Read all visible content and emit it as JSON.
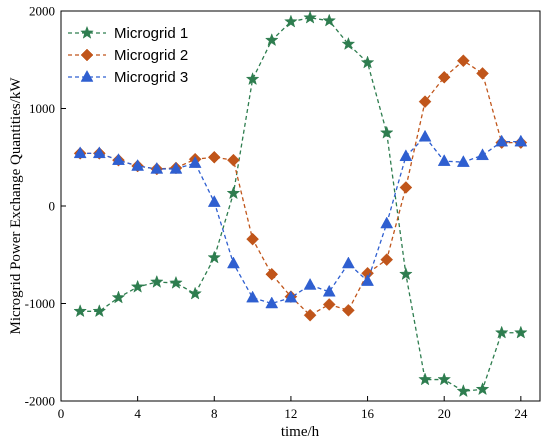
{
  "chart_data": {
    "type": "line",
    "title": "",
    "xlabel": "time/h",
    "ylabel": "Microgrid Power Exchange Quantities/kW",
    "xlim": [
      0,
      25
    ],
    "ylim": [
      -2000,
      2000
    ],
    "x_ticks": [
      0,
      4,
      8,
      12,
      16,
      20,
      24
    ],
    "y_ticks": [
      -2000,
      -1000,
      0,
      1000,
      2000
    ],
    "grid": false,
    "legend_position": "top-left",
    "x": [
      1,
      2,
      3,
      4,
      5,
      6,
      7,
      8,
      9,
      10,
      11,
      12,
      13,
      14,
      15,
      16,
      17,
      18,
      19,
      20,
      21,
      22,
      23,
      24
    ],
    "series": [
      {
        "name": "Microgrid 1",
        "color": "#2e7d4f",
        "marker": "star",
        "line_style": "dashed",
        "values": [
          -1080,
          -1080,
          -940,
          -830,
          -780,
          -790,
          -900,
          -530,
          130,
          1300,
          1700,
          1890,
          1930,
          1900,
          1660,
          1470,
          750,
          -700,
          -1780,
          -1780,
          -1900,
          -1880,
          -1300,
          -1300
        ]
      },
      {
        "name": "Microgrid 2",
        "color": "#c0551a",
        "marker": "diamond",
        "line_style": "dashed",
        "values": [
          540,
          540,
          470,
          410,
          380,
          390,
          480,
          500,
          470,
          -340,
          -700,
          -930,
          -1120,
          -1010,
          -1070,
          -690,
          -550,
          190,
          1070,
          1320,
          1490,
          1360,
          650,
          650
        ]
      },
      {
        "name": "Microgrid 3",
        "color": "#2f5fd0",
        "marker": "triangle",
        "line_style": "dashed",
        "values": [
          540,
          540,
          470,
          410,
          380,
          380,
          440,
          40,
          -590,
          -940,
          -1000,
          -940,
          -810,
          -880,
          -590,
          -770,
          -180,
          510,
          710,
          460,
          450,
          520,
          660,
          660
        ]
      }
    ]
  }
}
